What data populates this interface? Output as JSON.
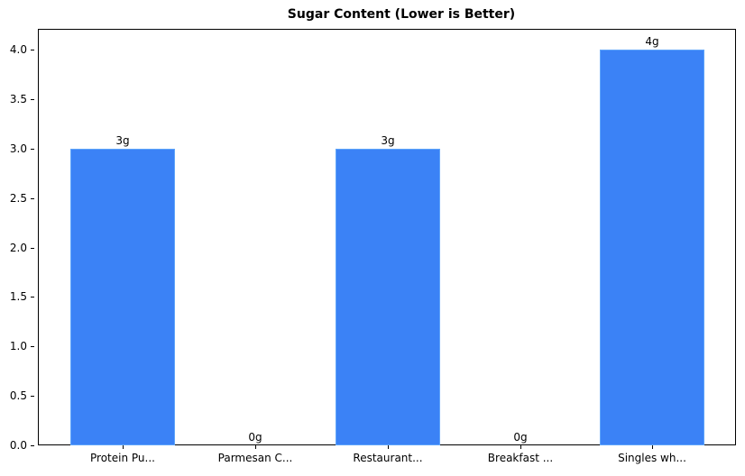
{
  "chart_data": {
    "type": "bar",
    "title": "Sugar Content (Lower is Better)",
    "xlabel": "",
    "ylabel": "",
    "categories": [
      "Protein Pu...",
      "Parmesan C...",
      "Restaurant...",
      "Breakfast ...",
      "Singles wh..."
    ],
    "values": [
      3,
      0,
      3,
      0,
      4
    ],
    "data_labels": [
      "3g",
      "0g",
      "3g",
      "0g",
      "4g"
    ],
    "ylim": [
      0,
      4.2
    ],
    "yticks": [
      "0.0",
      "0.5",
      "1.0",
      "1.5",
      "2.0",
      "2.5",
      "3.0",
      "3.5",
      "4.0"
    ],
    "grid": false,
    "legend": null,
    "bar_color": "#3b82f6"
  }
}
